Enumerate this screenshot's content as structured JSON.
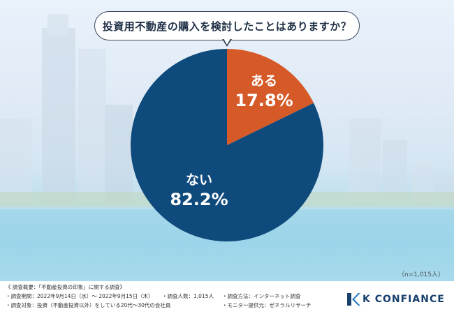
{
  "question": "投資用不動産の購入を検討したことはありますか？",
  "sample_note": "（n=1,015人）",
  "colors": {
    "no": "#0f4a7c",
    "yes": "#d65a28",
    "label": "#ffffff"
  },
  "chart_data": {
    "type": "pie",
    "title": "投資用不動産の購入を検討したことはありますか？",
    "slices": [
      {
        "label": "ある",
        "value": 17.8,
        "value_label": "17.8%"
      },
      {
        "label": "ない",
        "value": 82.2,
        "value_label": "82.2%"
      }
    ],
    "start": "12 o'clock, clockwise"
  },
  "survey": {
    "heading": "《 調査概要：「不動産投資の印象」に関する調査》",
    "period": "・調査期間：2022年9月14日（水）～ 2022年9月15日（木）",
    "count": "・調査人数：1,015人",
    "method": "・調査方法：インターネット調査",
    "target": "・調査対象：投資（不動産投資以外）をしている20代～30代の会社員",
    "provider": "・モニター提供元：ゼネラルリサーチ"
  },
  "logo": {
    "text": "K CONFIANCE",
    "icon": "k-logo-icon"
  }
}
